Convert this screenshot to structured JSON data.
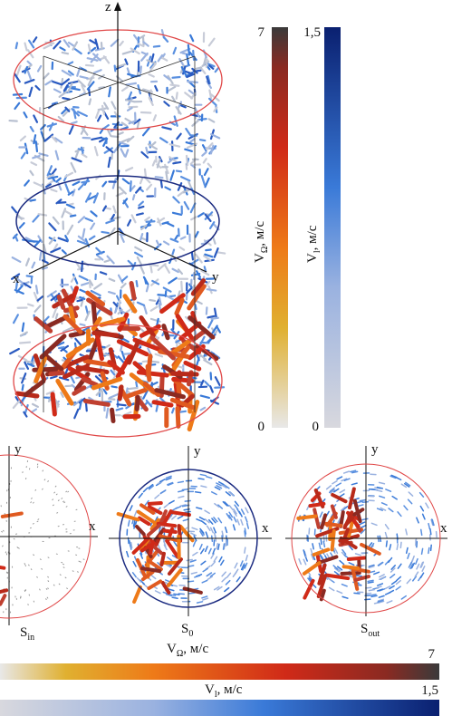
{
  "figure_3d": {
    "axes": {
      "z": "z",
      "x": "x",
      "y": "y"
    }
  },
  "colorbar_omega": {
    "max": "7",
    "min": "0",
    "label": {
      "symbol": "V",
      "subscript": "Ω",
      "unit": ", м/с"
    }
  },
  "colorbar_l": {
    "max": "1,5",
    "min": "0",
    "label": {
      "symbol": "V",
      "subscript": "l",
      "unit": ", м/с"
    }
  },
  "sections": [
    {
      "label": {
        "symbol": "S",
        "subscript": "in"
      },
      "axes": {
        "x": "x",
        "y": "y"
      }
    },
    {
      "label": {
        "symbol": "S",
        "subscript": "0"
      },
      "axes": {
        "x": "x",
        "y": "y"
      }
    },
    {
      "label": {
        "symbol": "S",
        "subscript": "out"
      },
      "axes": {
        "x": "x",
        "y": "y"
      }
    }
  ],
  "bottom_colorbars": [
    {
      "label": {
        "symbol": "V",
        "subscript": "Ω",
        "unit": ", м/с"
      },
      "max": "7"
    },
    {
      "label": {
        "symbol": "V",
        "subscript": "l",
        "unit": ", м/с"
      },
      "max": "1,5"
    }
  ]
}
